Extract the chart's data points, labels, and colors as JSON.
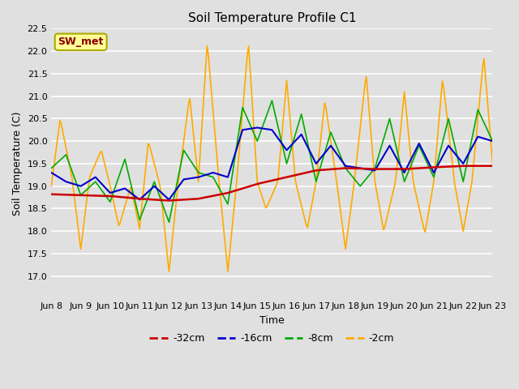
{
  "title": "Soil Temperature Profile C1",
  "xlabel": "Time",
  "ylabel": "Soil Temperature (C)",
  "ylim": [
    16.5,
    22.5
  ],
  "yticks": [
    17.0,
    17.5,
    18.0,
    18.5,
    19.0,
    19.5,
    20.0,
    20.5,
    21.0,
    21.5,
    22.0,
    22.5
  ],
  "xtick_labels": [
    "Jun 8",
    "Jun 9",
    "Jun 10",
    "Jun 11",
    "Jun 12",
    "Jun 13",
    "Jun 14",
    "Jun 15",
    "Jun 16",
    "Jun 17",
    "Jun 18",
    "Jun 19",
    "Jun 20",
    "Jun 21",
    "Jun 22",
    "Jun 23"
  ],
  "bg_color": "#e0e0e0",
  "plot_bg_color": "#e0e0e0",
  "grid_color": "white",
  "series_colors": {
    "-32cm": "#cc0000",
    "-16cm": "#0000cc",
    "-8cm": "#00aa00",
    "-2cm": "#ffaa00"
  },
  "legend_box_color": "#ffff99",
  "legend_box_edge": "#aaa800",
  "legend_text_color": "#880000",
  "annotation_text": "SW_met"
}
